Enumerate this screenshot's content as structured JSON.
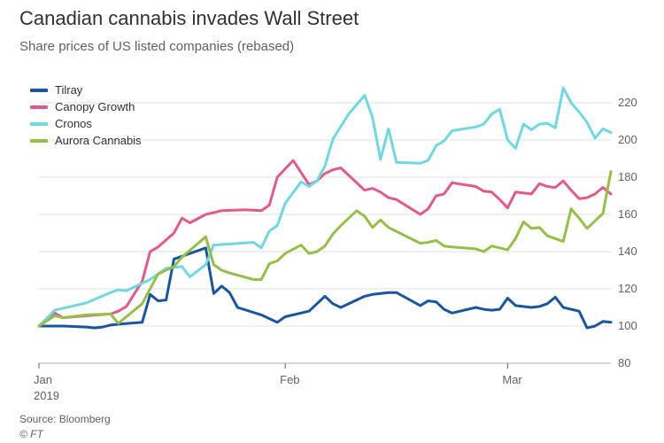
{
  "header": {
    "title": "Canadian cannabis invades Wall Street",
    "subtitle": "Share prices of US listed companies (rebased)"
  },
  "footer": {
    "source": "Source: Bloomberg",
    "credit": "© FT"
  },
  "chart_data": {
    "type": "line",
    "title": "Canadian cannabis invades Wall Street",
    "subtitle": "Share prices of US listed companies (rebased)",
    "xlabel": "",
    "ylabel": "",
    "x_tick_labels": [
      {
        "date": "2019-01-01",
        "label": "Jan",
        "sublabel": "2019"
      },
      {
        "date": "2019-02-01",
        "label": "Feb",
        "sublabel": ""
      },
      {
        "date": "2019-03-01",
        "label": "Mar",
        "sublabel": ""
      }
    ],
    "xlim": [
      "2019-01-01",
      "2019-03-14"
    ],
    "ylim": [
      80,
      230
    ],
    "y_ticks": [
      80,
      100,
      120,
      140,
      160,
      180,
      200,
      220
    ],
    "y_axis_side": "right",
    "grid": "horizontal",
    "legend_placement": "top-left",
    "series": [
      {
        "name": "Tilray",
        "color": "#1a55a0",
        "points": [
          [
            "2019-01-01",
            100
          ],
          [
            "2019-01-03",
            100
          ],
          [
            "2019-01-04",
            100
          ],
          [
            "2019-01-07",
            99.5
          ],
          [
            "2019-01-08",
            99
          ],
          [
            "2019-01-09",
            99.5
          ],
          [
            "2019-01-10",
            100.5
          ],
          [
            "2019-01-11",
            101
          ],
          [
            "2019-01-14",
            102
          ],
          [
            "2019-01-15",
            117
          ],
          [
            "2019-01-16",
            113.5
          ],
          [
            "2019-01-17",
            114
          ],
          [
            "2019-01-18",
            136
          ],
          [
            "2019-01-22",
            142
          ],
          [
            "2019-01-23",
            117.5
          ],
          [
            "2019-01-24",
            121.5
          ],
          [
            "2019-01-25",
            118
          ],
          [
            "2019-01-26",
            110
          ],
          [
            "2019-01-29",
            106
          ],
          [
            "2019-01-31",
            102
          ],
          [
            "2019-02-01",
            105
          ],
          [
            "2019-02-04",
            108
          ],
          [
            "2019-02-05",
            112
          ],
          [
            "2019-02-06",
            116
          ],
          [
            "2019-02-07",
            112
          ],
          [
            "2019-02-08",
            110
          ],
          [
            "2019-02-11",
            116
          ],
          [
            "2019-02-12",
            117
          ],
          [
            "2019-02-13",
            117.5
          ],
          [
            "2019-02-14",
            118
          ],
          [
            "2019-02-15",
            118
          ],
          [
            "2019-02-18",
            111
          ],
          [
            "2019-02-19",
            113.5
          ],
          [
            "2019-02-20",
            113
          ],
          [
            "2019-02-21",
            109
          ],
          [
            "2019-02-22",
            107
          ],
          [
            "2019-02-25",
            110
          ],
          [
            "2019-02-26",
            109
          ],
          [
            "2019-02-27",
            108.5
          ],
          [
            "2019-02-28",
            109
          ],
          [
            "2019-03-01",
            115
          ],
          [
            "2019-03-02",
            111
          ],
          [
            "2019-03-04",
            110
          ],
          [
            "2019-03-05",
            110.5
          ],
          [
            "2019-03-06",
            112
          ],
          [
            "2019-03-07",
            115.5
          ],
          [
            "2019-03-08",
            110
          ],
          [
            "2019-03-10",
            108
          ],
          [
            "2019-03-11",
            99
          ],
          [
            "2019-03-12",
            100
          ],
          [
            "2019-03-13",
            102.5
          ],
          [
            "2019-03-14",
            102
          ]
        ]
      },
      {
        "name": "Canopy Growth",
        "color": "#e5588a",
        "points": [
          [
            "2019-01-01",
            100
          ],
          [
            "2019-01-03",
            107
          ],
          [
            "2019-01-04",
            104.5
          ],
          [
            "2019-01-07",
            105.5
          ],
          [
            "2019-01-10",
            106.5
          ],
          [
            "2019-01-11",
            108
          ],
          [
            "2019-01-12",
            110.5
          ],
          [
            "2019-01-14",
            124
          ],
          [
            "2019-01-15",
            140
          ],
          [
            "2019-01-16",
            142.5
          ],
          [
            "2019-01-18",
            150
          ],
          [
            "2019-01-19",
            158
          ],
          [
            "2019-01-20",
            155.5
          ],
          [
            "2019-01-22",
            160
          ],
          [
            "2019-01-24",
            162
          ],
          [
            "2019-01-27",
            162.5
          ],
          [
            "2019-01-29",
            162
          ],
          [
            "2019-01-30",
            165
          ],
          [
            "2019-01-31",
            180
          ],
          [
            "2019-02-01",
            184.5
          ],
          [
            "2019-02-02",
            189
          ],
          [
            "2019-02-04",
            176
          ],
          [
            "2019-02-05",
            178
          ],
          [
            "2019-02-06",
            182
          ],
          [
            "2019-02-07",
            184
          ],
          [
            "2019-02-08",
            185
          ],
          [
            "2019-02-09",
            181
          ],
          [
            "2019-02-11",
            173
          ],
          [
            "2019-02-12",
            174
          ],
          [
            "2019-02-13",
            172
          ],
          [
            "2019-02-14",
            169
          ],
          [
            "2019-02-15",
            168
          ],
          [
            "2019-02-18",
            160
          ],
          [
            "2019-02-19",
            163
          ],
          [
            "2019-02-20",
            170
          ],
          [
            "2019-02-21",
            171
          ],
          [
            "2019-02-22",
            177
          ],
          [
            "2019-02-25",
            175
          ],
          [
            "2019-02-26",
            172.5
          ],
          [
            "2019-02-27",
            172
          ],
          [
            "2019-02-28",
            168
          ],
          [
            "2019-03-01",
            163.5
          ],
          [
            "2019-03-02",
            172
          ],
          [
            "2019-03-04",
            171
          ],
          [
            "2019-03-05",
            176.5
          ],
          [
            "2019-03-06",
            175
          ],
          [
            "2019-03-07",
            174.5
          ],
          [
            "2019-03-08",
            178
          ],
          [
            "2019-03-09",
            173
          ],
          [
            "2019-03-10",
            168.5
          ],
          [
            "2019-03-11",
            169
          ],
          [
            "2019-03-12",
            171
          ],
          [
            "2019-03-13",
            174.5
          ],
          [
            "2019-03-14",
            171
          ]
        ]
      },
      {
        "name": "Cronos",
        "color": "#6fd8e0",
        "points": [
          [
            "2019-01-01",
            100
          ],
          [
            "2019-01-03",
            108.5
          ],
          [
            "2019-01-07",
            112.5
          ],
          [
            "2019-01-10",
            118
          ],
          [
            "2019-01-11",
            119.5
          ],
          [
            "2019-01-12",
            119
          ],
          [
            "2019-01-13",
            121
          ],
          [
            "2019-01-15",
            125
          ],
          [
            "2019-01-17",
            131
          ],
          [
            "2019-01-18",
            131.5
          ],
          [
            "2019-01-19",
            132
          ],
          [
            "2019-01-20",
            126.5
          ],
          [
            "2019-01-22",
            133
          ],
          [
            "2019-01-23",
            143.5
          ],
          [
            "2019-01-28",
            145
          ],
          [
            "2019-01-29",
            142
          ],
          [
            "2019-01-30",
            151
          ],
          [
            "2019-01-31",
            154
          ],
          [
            "2019-02-01",
            166
          ],
          [
            "2019-02-03",
            177.5
          ],
          [
            "2019-02-04",
            175
          ],
          [
            "2019-02-05",
            178
          ],
          [
            "2019-02-06",
            186
          ],
          [
            "2019-02-07",
            200.5
          ],
          [
            "2019-02-09",
            214
          ],
          [
            "2019-02-11",
            224
          ],
          [
            "2019-02-12",
            212
          ],
          [
            "2019-02-13",
            189.5
          ],
          [
            "2019-02-14",
            206
          ],
          [
            "2019-02-15",
            188
          ],
          [
            "2019-02-18",
            187.5
          ],
          [
            "2019-02-19",
            189
          ],
          [
            "2019-02-20",
            197
          ],
          [
            "2019-02-21",
            199.5
          ],
          [
            "2019-02-22",
            205
          ],
          [
            "2019-02-25",
            207
          ],
          [
            "2019-02-26",
            208.5
          ],
          [
            "2019-02-27",
            214
          ],
          [
            "2019-02-28",
            216.5
          ],
          [
            "2019-03-01",
            200
          ],
          [
            "2019-03-02",
            195.5
          ],
          [
            "2019-03-03",
            208.5
          ],
          [
            "2019-03-04",
            205.5
          ],
          [
            "2019-03-05",
            208.5
          ],
          [
            "2019-03-06",
            209
          ],
          [
            "2019-03-07",
            206.5
          ],
          [
            "2019-03-08",
            228
          ],
          [
            "2019-03-09",
            220
          ],
          [
            "2019-03-10",
            215
          ],
          [
            "2019-03-11",
            209.5
          ],
          [
            "2019-03-12",
            201
          ],
          [
            "2019-03-13",
            206
          ],
          [
            "2019-03-14",
            204
          ]
        ]
      },
      {
        "name": "Aurora Cannabis",
        "color": "#96bf48",
        "points": [
          [
            "2019-01-01",
            100
          ],
          [
            "2019-01-03",
            105.5
          ],
          [
            "2019-01-04",
            104.5
          ],
          [
            "2019-01-07",
            106
          ],
          [
            "2019-01-10",
            106.5
          ],
          [
            "2019-01-11",
            101.5
          ],
          [
            "2019-01-14",
            112
          ],
          [
            "2019-01-15",
            120
          ],
          [
            "2019-01-16",
            128
          ],
          [
            "2019-01-18",
            132
          ],
          [
            "2019-01-19",
            137
          ],
          [
            "2019-01-22",
            148
          ],
          [
            "2019-01-23",
            133
          ],
          [
            "2019-01-24",
            130
          ],
          [
            "2019-01-25",
            128.5
          ],
          [
            "2019-01-28",
            125
          ],
          [
            "2019-01-29",
            125
          ],
          [
            "2019-01-30",
            133.5
          ],
          [
            "2019-01-31",
            135
          ],
          [
            "2019-02-01",
            139
          ],
          [
            "2019-02-03",
            143.5
          ],
          [
            "2019-02-04",
            139
          ],
          [
            "2019-02-05",
            140
          ],
          [
            "2019-02-06",
            143
          ],
          [
            "2019-02-07",
            149.5
          ],
          [
            "2019-02-08",
            154
          ],
          [
            "2019-02-10",
            162
          ],
          [
            "2019-02-11",
            159
          ],
          [
            "2019-02-12",
            153
          ],
          [
            "2019-02-13",
            157
          ],
          [
            "2019-02-14",
            153
          ],
          [
            "2019-02-18",
            144.5
          ],
          [
            "2019-02-19",
            145
          ],
          [
            "2019-02-20",
            146
          ],
          [
            "2019-02-21",
            143
          ],
          [
            "2019-02-22",
            142.5
          ],
          [
            "2019-02-25",
            141.5
          ],
          [
            "2019-02-26",
            140
          ],
          [
            "2019-02-27",
            143
          ],
          [
            "2019-02-28",
            142
          ],
          [
            "2019-03-01",
            141
          ],
          [
            "2019-03-02",
            147
          ],
          [
            "2019-03-03",
            156
          ],
          [
            "2019-03-04",
            152.5
          ],
          [
            "2019-03-05",
            153
          ],
          [
            "2019-03-06",
            148.5
          ],
          [
            "2019-03-07",
            147
          ],
          [
            "2019-03-08",
            145.5
          ],
          [
            "2019-03-09",
            163
          ],
          [
            "2019-03-10",
            158
          ],
          [
            "2019-03-11",
            152.5
          ],
          [
            "2019-03-12",
            156.5
          ],
          [
            "2019-03-13",
            160.5
          ],
          [
            "2019-03-14",
            183
          ]
        ]
      }
    ]
  }
}
